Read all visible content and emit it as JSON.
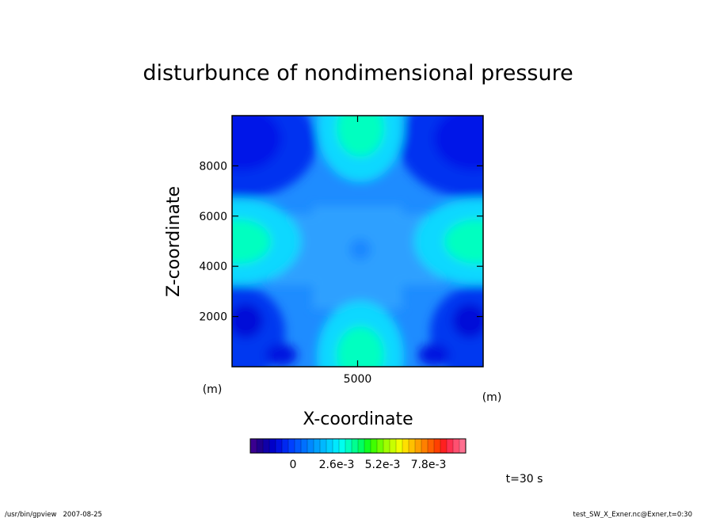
{
  "chart_data": {
    "type": "heatmap",
    "title": "disturbunce of nondimensional pressure",
    "xlabel": "X-coordinate",
    "ylabel": "Z-coordinate",
    "x_unit": "(m)",
    "y_unit": "(m)",
    "xlim": [
      0,
      10000
    ],
    "ylim": [
      0,
      10000
    ],
    "x_ticks": [
      {
        "value": 5000,
        "label": "5000"
      }
    ],
    "y_ticks": [
      {
        "value": 2000,
        "label": "2000"
      },
      {
        "value": 4000,
        "label": "4000"
      },
      {
        "value": 6000,
        "label": "6000"
      },
      {
        "value": 8000,
        "label": "8000"
      }
    ],
    "field_description": "Central plateau at near-zero disturbance with four maxima at the edge midpoints (x=5000,z~0), (x=5000,z~9000), (x~0,z~4800), (x~10000,z~4800) and minima near the corners.",
    "colorbar": {
      "colormap": "rainbow",
      "colors": [
        "#3a0090",
        "#20008c",
        "#1000a8",
        "#0000c8",
        "#0010e0",
        "#0028f0",
        "#0040ff",
        "#0058ff",
        "#0070ff",
        "#0088ff",
        "#00a0ff",
        "#00b8ff",
        "#00d0ff",
        "#00e8ff",
        "#00ffee",
        "#00ffc0",
        "#00ff90",
        "#00ff60",
        "#10ff20",
        "#40ff00",
        "#70ff00",
        "#a0ff00",
        "#c8ff00",
        "#f0ff00",
        "#ffe000",
        "#ffc000",
        "#ffa000",
        "#ff8000",
        "#ff6000",
        "#ff4000",
        "#ff2020",
        "#ff3050",
        "#ff5070",
        "#ff7090"
      ],
      "tick_labels": [
        "0",
        "2.6e-3",
        "5.2e-3",
        "7.8e-3"
      ]
    },
    "annotation_time": "t=30 s",
    "footer_left": "/usr/bin/gpview   2007-08-25",
    "footer_right": "test_SW_X_Exner.nc@Exner,t=0:30"
  }
}
